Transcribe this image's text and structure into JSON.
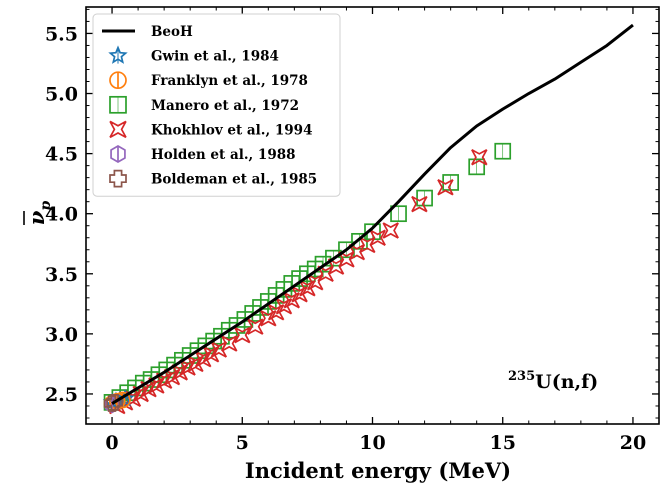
{
  "chart_data": {
    "type": "scatter",
    "title": "",
    "xlabel": "Incident energy (MeV)",
    "ylabel_base": "ν",
    "ylabel_sub": "p",
    "xlim": [
      -1,
      21
    ],
    "ylim": [
      2.25,
      5.72
    ],
    "xticks": [
      0,
      5,
      10,
      15,
      20
    ],
    "yticks": [
      2.5,
      3.0,
      3.5,
      4.0,
      4.5,
      5.0,
      5.5
    ],
    "xtick_labels": [
      "0",
      "5",
      "10",
      "15",
      "20"
    ],
    "ytick_labels": [
      "2.5",
      "3.0",
      "3.5",
      "4.0",
      "4.5",
      "5.0",
      "5.5"
    ],
    "grid": false,
    "legend_position": "top-left",
    "annotation": {
      "sup": "235",
      "text": "U(n,f)"
    },
    "series": [
      {
        "name": "BeoH",
        "kind": "line",
        "color": "#000000",
        "x": [
          0,
          1,
          2,
          3,
          4,
          5,
          6,
          7,
          8,
          9,
          10,
          11,
          12,
          13,
          14,
          15,
          16,
          17,
          18,
          19,
          20
        ],
        "y": [
          2.42,
          2.55,
          2.68,
          2.82,
          2.96,
          3.1,
          3.25,
          3.4,
          3.55,
          3.7,
          3.88,
          4.1,
          4.33,
          4.55,
          4.73,
          4.87,
          5.0,
          5.12,
          5.26,
          5.4,
          5.57
        ]
      },
      {
        "name": "Gwin et al., 1984",
        "kind": "scatter",
        "marker": "star",
        "color": "#1f77b4",
        "x": [
          0.0,
          0.15,
          0.3,
          0.5
        ],
        "y": [
          2.43,
          2.44,
          2.45,
          2.46
        ]
      },
      {
        "name": "Franklyn et al., 1978",
        "kind": "scatter",
        "marker": "circle-bar",
        "color": "#ff7f0e",
        "x": [
          0.0,
          0.2,
          0.4
        ],
        "y": [
          2.42,
          2.44,
          2.45
        ]
      },
      {
        "name": "Manero et al., 1972",
        "kind": "scatter",
        "marker": "square",
        "color": "#2ca02c",
        "x": [
          0.0,
          0.3,
          0.6,
          0.9,
          1.2,
          1.5,
          1.8,
          2.1,
          2.4,
          2.7,
          3.0,
          3.3,
          3.6,
          3.9,
          4.2,
          4.5,
          4.8,
          5.1,
          5.4,
          5.7,
          6.0,
          6.3,
          6.6,
          6.9,
          7.2,
          7.5,
          7.8,
          8.1,
          8.5,
          9.0,
          9.5,
          10.0,
          11.0,
          12.0,
          13.0,
          14.0,
          15.0
        ],
        "y": [
          2.43,
          2.47,
          2.51,
          2.55,
          2.59,
          2.62,
          2.66,
          2.7,
          2.74,
          2.78,
          2.82,
          2.86,
          2.9,
          2.94,
          2.98,
          3.03,
          3.07,
          3.12,
          3.17,
          3.22,
          3.27,
          3.32,
          3.37,
          3.42,
          3.46,
          3.5,
          3.54,
          3.58,
          3.63,
          3.7,
          3.77,
          3.85,
          4.0,
          4.13,
          4.26,
          4.39,
          4.52
        ]
      },
      {
        "name": "Khokhlov et al., 1994",
        "kind": "scatter",
        "marker": "double-x",
        "color": "#d62728",
        "x": [
          0.2,
          0.5,
          0.8,
          1.1,
          1.4,
          1.7,
          2.0,
          2.3,
          2.6,
          2.9,
          3.2,
          3.5,
          3.8,
          4.1,
          4.5,
          5.0,
          5.5,
          6.0,
          6.3,
          6.6,
          6.9,
          7.2,
          7.5,
          7.8,
          8.2,
          8.6,
          9.0,
          9.4,
          9.8,
          10.2,
          10.7,
          11.8,
          12.8,
          14.1
        ],
        "y": [
          2.4,
          2.43,
          2.46,
          2.5,
          2.54,
          2.57,
          2.61,
          2.64,
          2.68,
          2.72,
          2.75,
          2.79,
          2.83,
          2.87,
          2.92,
          2.99,
          3.06,
          3.13,
          3.18,
          3.23,
          3.28,
          3.33,
          3.38,
          3.43,
          3.5,
          3.56,
          3.62,
          3.68,
          3.74,
          3.8,
          3.86,
          4.08,
          4.22,
          4.47
        ]
      },
      {
        "name": "Holden et al., 1988",
        "kind": "scatter",
        "marker": "hexagon",
        "color": "#9467bd",
        "x": [
          0.0
        ],
        "y": [
          2.41
        ]
      },
      {
        "name": "Boldeman et al., 1985",
        "kind": "scatter",
        "marker": "plus",
        "color": "#8c564b",
        "x": [
          0.0,
          0.1
        ],
        "y": [
          2.42,
          2.43
        ]
      }
    ]
  }
}
